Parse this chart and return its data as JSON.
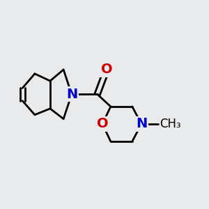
{
  "background_color": "#e8eaec",
  "bond_color": "#000000",
  "N_color": "#0000cc",
  "O_color": "#cc0000",
  "bond_width": 2.0,
  "font_size_atom": 14,
  "font_size_methyl": 12,
  "xlim": [
    0.0,
    1.0
  ],
  "ylim": [
    0.15,
    0.95
  ]
}
